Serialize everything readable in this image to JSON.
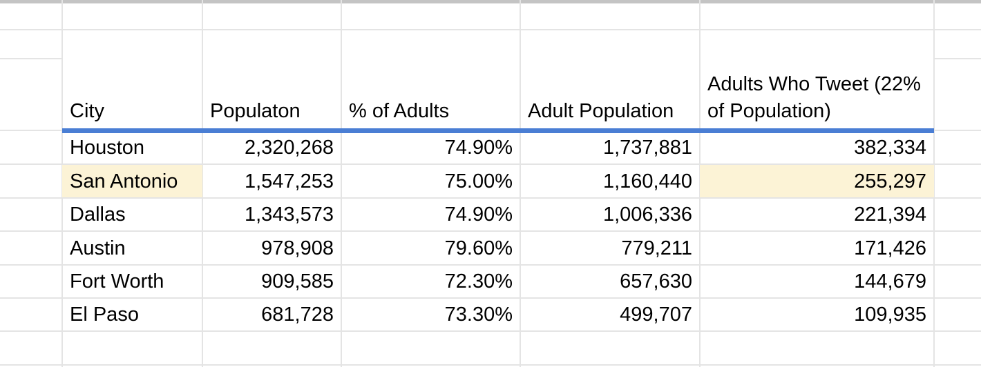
{
  "app": {
    "type": "spreadsheet-grid-view"
  },
  "colors": {
    "background": "#ffffff",
    "gridline": "#e4e4e4",
    "top_edge_bar": "#c4c4c4",
    "header_underline_blue": "#4a7ed4",
    "highlight_cream": "#fcf3d6",
    "text": "#000000"
  },
  "table": {
    "columns": [
      {
        "key": "city",
        "label": "City",
        "align": "left"
      },
      {
        "key": "population",
        "label": "Populaton",
        "align": "right"
      },
      {
        "key": "pct_adults",
        "label": "% of Adults",
        "align": "right"
      },
      {
        "key": "adult_population",
        "label": "Adult Population",
        "align": "right"
      },
      {
        "key": "adults_who_tweet",
        "label": "Adults Who Tweet (22% of Population)",
        "align": "right"
      }
    ],
    "rows": [
      {
        "city": "Houston",
        "population": "2,320,268",
        "pct_adults": "74.90%",
        "adult_population": "1,737,881",
        "adults_who_tweet": "382,334",
        "highlighted": false
      },
      {
        "city": "San Antonio",
        "population": "1,547,253",
        "pct_adults": "75.00%",
        "adult_population": "1,160,440",
        "adults_who_tweet": "255,297",
        "highlighted": true
      },
      {
        "city": "Dallas",
        "population": "1,343,573",
        "pct_adults": "74.90%",
        "adult_population": "1,006,336",
        "adults_who_tweet": "221,394",
        "highlighted": false
      },
      {
        "city": "Austin",
        "population": "978,908",
        "pct_adults": "79.60%",
        "adult_population": "779,211",
        "adults_who_tweet": "171,426",
        "highlighted": false
      },
      {
        "city": "Fort Worth",
        "population": "909,585",
        "pct_adults": "72.30%",
        "adult_population": "657,630",
        "adults_who_tweet": "144,679",
        "highlighted": false
      },
      {
        "city": "El Paso",
        "population": "681,728",
        "pct_adults": "73.30%",
        "adult_population": "499,707",
        "adults_who_tweet": "109,935",
        "highlighted": false
      }
    ],
    "highlighted_cells_note": "San Antonio row: City cell and Adults Who Tweet cell have cream highlight"
  }
}
